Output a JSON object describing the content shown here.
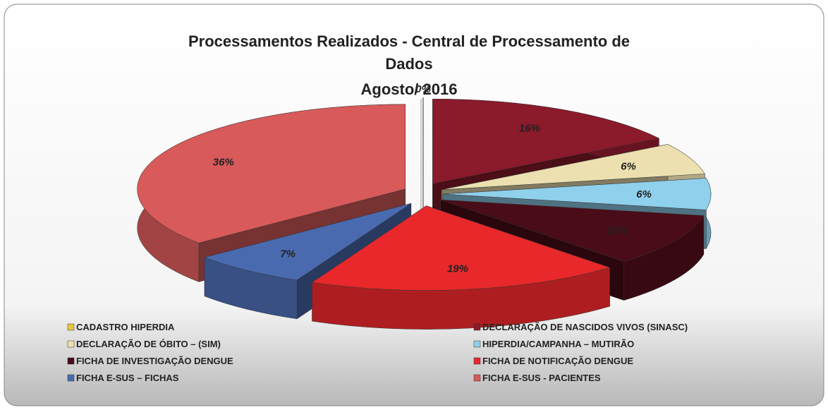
{
  "chart_data": {
    "type": "pie3d",
    "title": "Processamentos Realizados - Central de Processamento de Dados",
    "subtitle": "Agosto/ 2016",
    "categories": [
      "CADASTRO HIPERDIA",
      "DECLARAÇÃO DE NASCIDOS VIVOS (SINASC)",
      "DECLARAÇÃO DE ÓBITO – (SIM)",
      "HIPERDIA/CAMPANHA – MUTIRÃO",
      "FICHA DE INVESTIGAÇÃO DENGUE",
      "FICHA DE NOTIFICAÇÃO DENGUE",
      "FICHA E-SUS – FICHAS",
      "FICHA E-SUS - PACIENTES"
    ],
    "values": [
      0,
      16,
      6,
      6,
      10,
      19,
      7,
      36
    ],
    "value_labels": [
      "0%",
      "16%",
      "6%",
      "6%",
      "10%",
      "19%",
      "7%",
      "36%"
    ],
    "colors": [
      "#e8c840",
      "#8b1a2a",
      "#ece0b0",
      "#8fd0ec",
      "#4a0c18",
      "#e8282a",
      "#4a6ab0",
      "#d85a5a"
    ]
  }
}
